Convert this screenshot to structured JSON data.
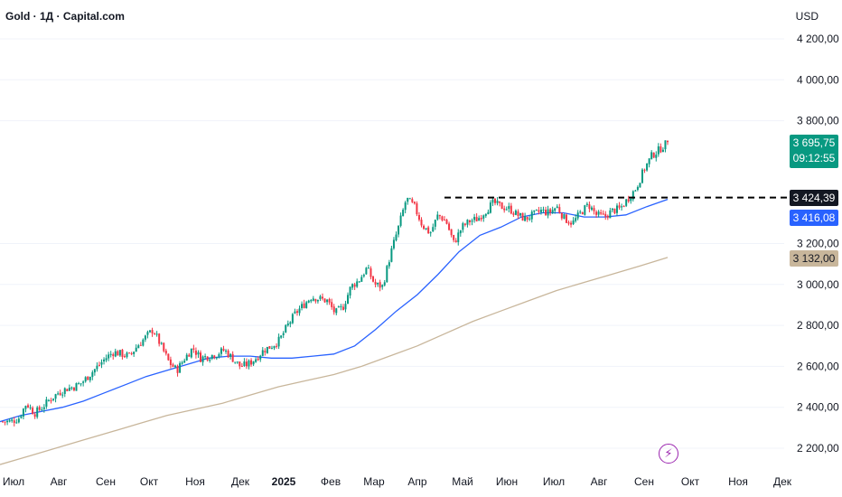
{
  "header": {
    "title": "Gold · 1Д · Capital.com",
    "currency": "USD"
  },
  "price_tags": {
    "last_price": "3 695,75",
    "countdown": "09:12:55",
    "resistance": "3 424,39",
    "ma50": "3 416,08",
    "ma200": "3 132,00"
  },
  "colors": {
    "up": "#089981",
    "down": "#f23645",
    "ma50": "#2962ff",
    "ma200": "#c8b69b",
    "resistance": "#000000",
    "bolt": "#9c27b0"
  },
  "icons": {
    "event_marker": "lightning-bolt-icon"
  },
  "chart_data": {
    "type": "candlestick",
    "title": "Gold · 1Д · Capital.com",
    "ylabel": "USD",
    "ylim": [
      2100,
      4300
    ],
    "y_ticks": [
      "4 200,00",
      "4 000,00",
      "3 800,00",
      "3 200,00",
      "3 000,00",
      "2 800,00",
      "2 600,00",
      "2 400,00",
      "2 200,00"
    ],
    "y_tick_values": [
      4200,
      4000,
      3800,
      3200,
      3000,
      2800,
      2600,
      2400,
      2200
    ],
    "x_ticks": [
      "Июл",
      "Авг",
      "Сен",
      "Окт",
      "Ноя",
      "Дек",
      "2025",
      "Фев",
      "Мар",
      "Апр",
      "Май",
      "Июн",
      "Июл",
      "Авг",
      "Сен",
      "Окт",
      "Ноя",
      "Дек"
    ],
    "x_tick_bold": [
      false,
      false,
      false,
      false,
      false,
      false,
      true,
      false,
      false,
      false,
      false,
      false,
      false,
      false,
      false,
      false,
      false,
      false
    ],
    "close_path": [
      2330,
      2330,
      2345,
      2420,
      2370,
      2400,
      2440,
      2470,
      2490,
      2500,
      2520,
      2560,
      2600,
      2640,
      2670,
      2660,
      2650,
      2700,
      2740,
      2780,
      2700,
      2620,
      2580,
      2640,
      2690,
      2640,
      2650,
      2660,
      2680,
      2640,
      2600,
      2610,
      2640,
      2680,
      2700,
      2730,
      2800,
      2860,
      2900,
      2940,
      2930,
      2920,
      2860,
      2890,
      2990,
      3020,
      3080,
      3000,
      2990,
      3150,
      3280,
      3420,
      3380,
      3290,
      3250,
      3340,
      3310,
      3200,
      3280,
      3310,
      3320,
      3360,
      3400,
      3380,
      3370,
      3340,
      3320,
      3340,
      3360,
      3350,
      3380,
      3320,
      3300,
      3350,
      3390,
      3340,
      3330,
      3360,
      3370,
      3420,
      3470,
      3560,
      3630,
      3660,
      3695.75
    ],
    "series": [
      {
        "name": "MA50",
        "values": [
          2330,
          2360,
          2380,
          2400,
          2430,
          2470,
          2510,
          2550,
          2580,
          2610,
          2640,
          2650,
          2650,
          2640,
          2640,
          2650,
          2660,
          2700,
          2780,
          2870,
          2950,
          3050,
          3160,
          3240,
          3280,
          3330,
          3350,
          3350,
          3330,
          3330,
          3340,
          3380,
          3416.08
        ]
      },
      {
        "name": "MA200",
        "values": [
          2120,
          2160,
          2200,
          2240,
          2280,
          2320,
          2360,
          2390,
          2420,
          2460,
          2500,
          2530,
          2560,
          2600,
          2650,
          2700,
          2760,
          2820,
          2870,
          2920,
          2970,
          3010,
          3050,
          3090,
          3132.0
        ]
      }
    ],
    "resistance_level": 3424.39
  }
}
